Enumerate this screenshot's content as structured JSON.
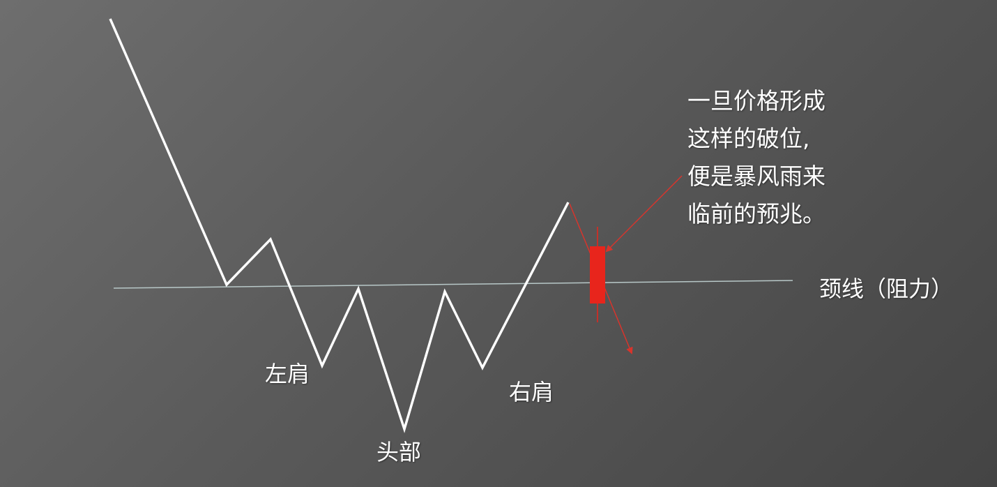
{
  "labels": {
    "left_shoulder": "左肩",
    "head": "头部",
    "right_shoulder": "右肩",
    "neckline": "颈线（阻力）"
  },
  "annotation": {
    "lines": [
      "一旦价格形成",
      "这样的破位,",
      "便是暴风雨来",
      "临前的预兆。"
    ]
  },
  "colors": {
    "background": "#5a5a5a",
    "price_line": "#ffffff",
    "neckline": "#b8c8c8",
    "candle": "#e8251c",
    "arrow": "#d8342c"
  }
}
